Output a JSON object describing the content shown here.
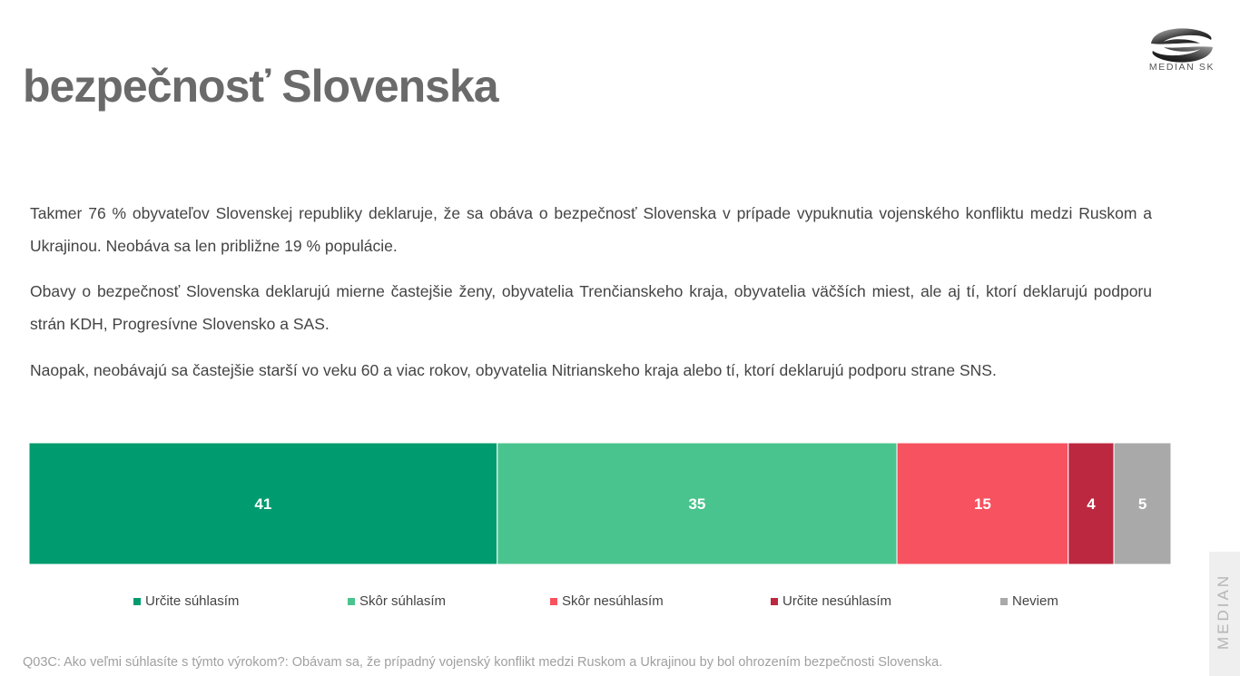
{
  "header": {
    "title": "bezpečnosť Slovenska",
    "logo_text": "MEDIAN SK"
  },
  "paragraphs": [
    "Takmer 76 % obyvateľov Slovenskej republiky deklaruje, že sa obáva o bezpečnosť Slovenska v prípade vypuknutia vojenského konfliktu medzi Ruskom a Ukrajinou. Neobáva sa len približne 19 % populácie.",
    "Obavy o bezpečnosť Slovenska deklarujú mierne častejšie ženy, obyvatelia Trenčianskeho kraja, obyvatelia väčších miest, ale aj tí, ktorí deklarujú podporu strán KDH, Progresívne Slovensko a SAS.",
    "Naopak, neobávajú sa častejšie starší vo veku 60 a viac rokov, obyvatelia Nitrianskeho kraja alebo tí, ktorí deklarujú podporu strane SNS."
  ],
  "chart_data": {
    "type": "bar",
    "orientation": "horizontal-stacked-100",
    "series": [
      {
        "name": "Určite súhlasím",
        "value": 41,
        "color": "#009b6e"
      },
      {
        "name": "Skôr súhlasím",
        "value": 35,
        "color": "#4ac48e"
      },
      {
        "name": "Skôr nesúhlasím",
        "value": 15,
        "color": "#f7525f"
      },
      {
        "name": "Určite nesúhlasím",
        "value": 4,
        "color": "#bc2840"
      },
      {
        "name": "Neviem",
        "value": 5,
        "color": "#a9a9a9"
      }
    ],
    "data_label_color": "#ffffff",
    "legend_position": "bottom"
  },
  "footnote": "Q03C: Ako veľmi súhlasíte s týmto výrokom?: Obávam sa, že prípadný vojenský konflikt medzi Ruskom a Ukrajinou by bol ohrozením bezpečnosti Slovenska.",
  "sidebar": {
    "label": "MEDIAN"
  }
}
